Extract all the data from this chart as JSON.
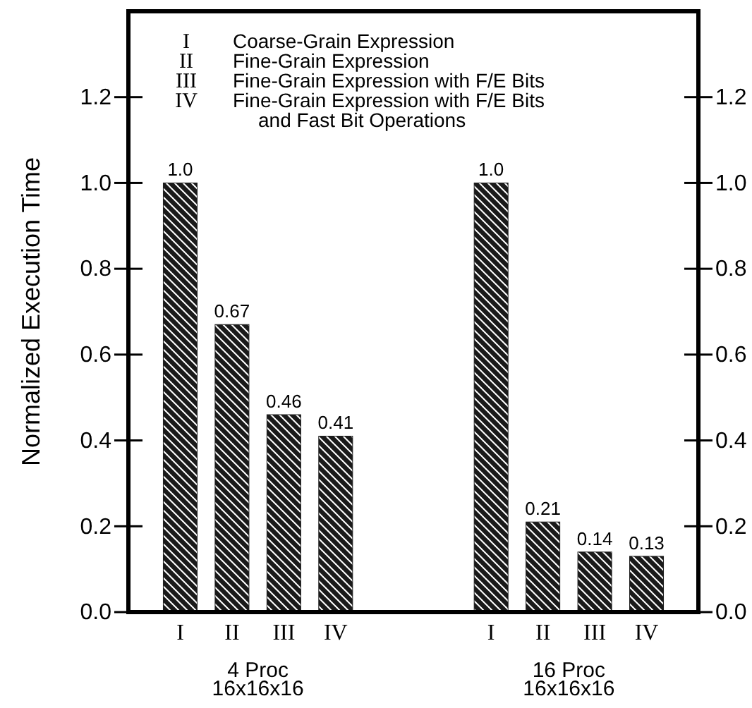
{
  "chart_data": {
    "type": "bar",
    "ylabel": "Normalized Execution Time",
    "categories": [
      "I",
      "II",
      "III",
      "IV",
      null,
      null,
      "I",
      "II",
      "III",
      "IV"
    ],
    "values": [
      1.0,
      0.67,
      0.46,
      0.41,
      null,
      null,
      1.0,
      0.21,
      0.14,
      0.13
    ],
    "value_labels": [
      "1.0",
      "0.67",
      "0.46",
      "0.41",
      null,
      null,
      "1.0",
      "0.21",
      "0.14",
      "0.13"
    ],
    "color": "#1a1a1a",
    "ylim": [
      0,
      1.4
    ],
    "yticks": [
      {
        "value": 0,
        "label": "0.0"
      },
      {
        "value": 0.2,
        "label": "0.2"
      },
      {
        "value": 0.4,
        "label": "0.4"
      },
      {
        "value": 0.6,
        "label": "0.6"
      },
      {
        "value": 0.8,
        "label": "0.8"
      },
      {
        "value": 1.0,
        "label": "1.0"
      },
      {
        "value": 1.2,
        "label": "1.2"
      }
    ],
    "y2lim": [
      0,
      1.4
    ],
    "y2ticks": [
      {
        "value": 0,
        "label": "0.0"
      },
      {
        "value": 0.2,
        "label": "0.2"
      },
      {
        "value": 0.4,
        "label": "0.4"
      },
      {
        "value": 0.6,
        "label": "0.6"
      },
      {
        "value": 0.8,
        "label": "0.8"
      },
      {
        "value": 1.0,
        "label": "1.0"
      },
      {
        "value": 1.2,
        "label": "1.2"
      }
    ],
    "annotations": [
      "I",
      "Coarse-Grain Expression",
      "II",
      "Fine-Grain Expression",
      "III",
      "Fine-Grain Expression with F/E Bits",
      "IV",
      "Fine-Grain Expression with F/E Bits\nand Fast Bit Operations",
      "4 Proc\n16x16x16",
      "16 Proc\n16x16x16"
    ]
  }
}
